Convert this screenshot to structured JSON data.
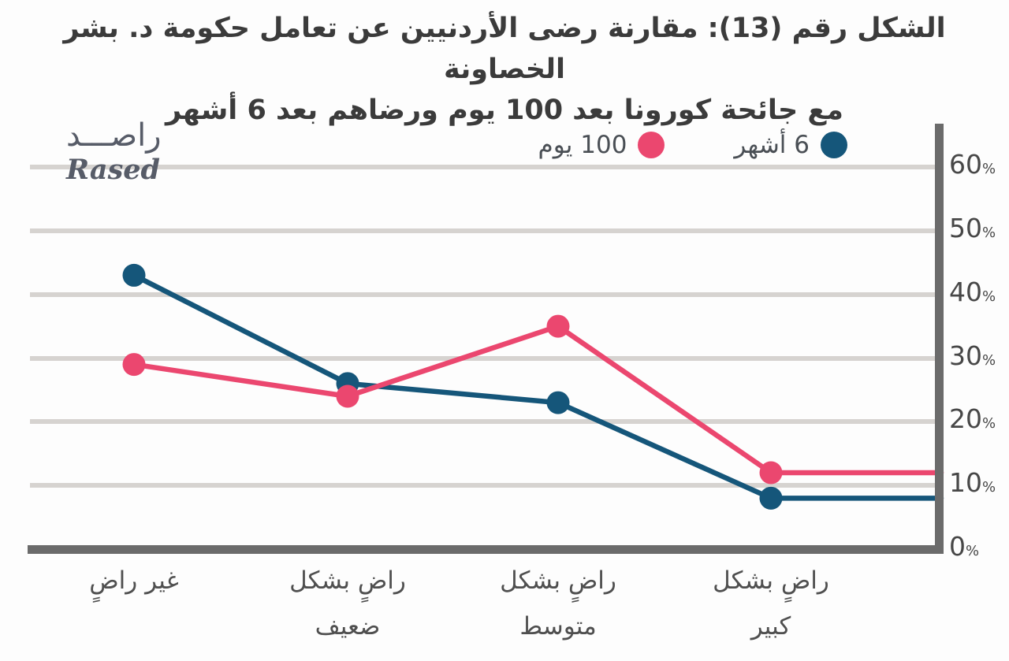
{
  "title": {
    "line1": "الشكل رقم (13): مقارنة رضى الأردنيين عن تعامل حكومة د. بشر الخصاونة",
    "line2": "مع جائحة كورونا بعد 100 يوم ورضاهم بعد 6 أشهر"
  },
  "logo": {
    "arabic": "راصـــد",
    "latin": "Rased"
  },
  "legend": {
    "items": [
      {
        "label": "100 يوم",
        "color": "#eb476f"
      },
      {
        "label": "6 أشهر",
        "color": "#15567a"
      }
    ]
  },
  "colors": {
    "pink": "#eb476f",
    "blue": "#15567a",
    "axis": "#6b6b6b",
    "gridline": "#d6d3d0",
    "title_text": "#3b3b3b"
  },
  "chart_data": {
    "type": "line",
    "title": "الشكل رقم (13): مقارنة رضى الأردنيين عن تعامل حكومة د. بشر الخصاونة مع جائحة كورونا بعد 100 يوم ورضاهم بعد 6 أشهر",
    "categories": [
      "غير راضٍ",
      "راضٍ بشكل\nضعيف",
      "راضٍ بشكل\nمتوسط",
      "راضٍ بشكل\nكبير"
    ],
    "series": [
      {
        "name": "6 أشهر",
        "color": "#15567a",
        "values": [
          43,
          26,
          23,
          8
        ]
      },
      {
        "name": "100 يوم",
        "color": "#eb476f",
        "values": [
          29,
          24,
          35,
          12
        ]
      }
    ],
    "y_ticks": [
      0,
      10,
      20,
      30,
      40,
      50,
      60
    ],
    "y_tick_suffix": "%",
    "ylim": [
      0,
      65
    ],
    "grid": true,
    "legend_position": "top-right",
    "y_axis_side": "right",
    "note": "lines extend flat from last category to the right axis"
  }
}
